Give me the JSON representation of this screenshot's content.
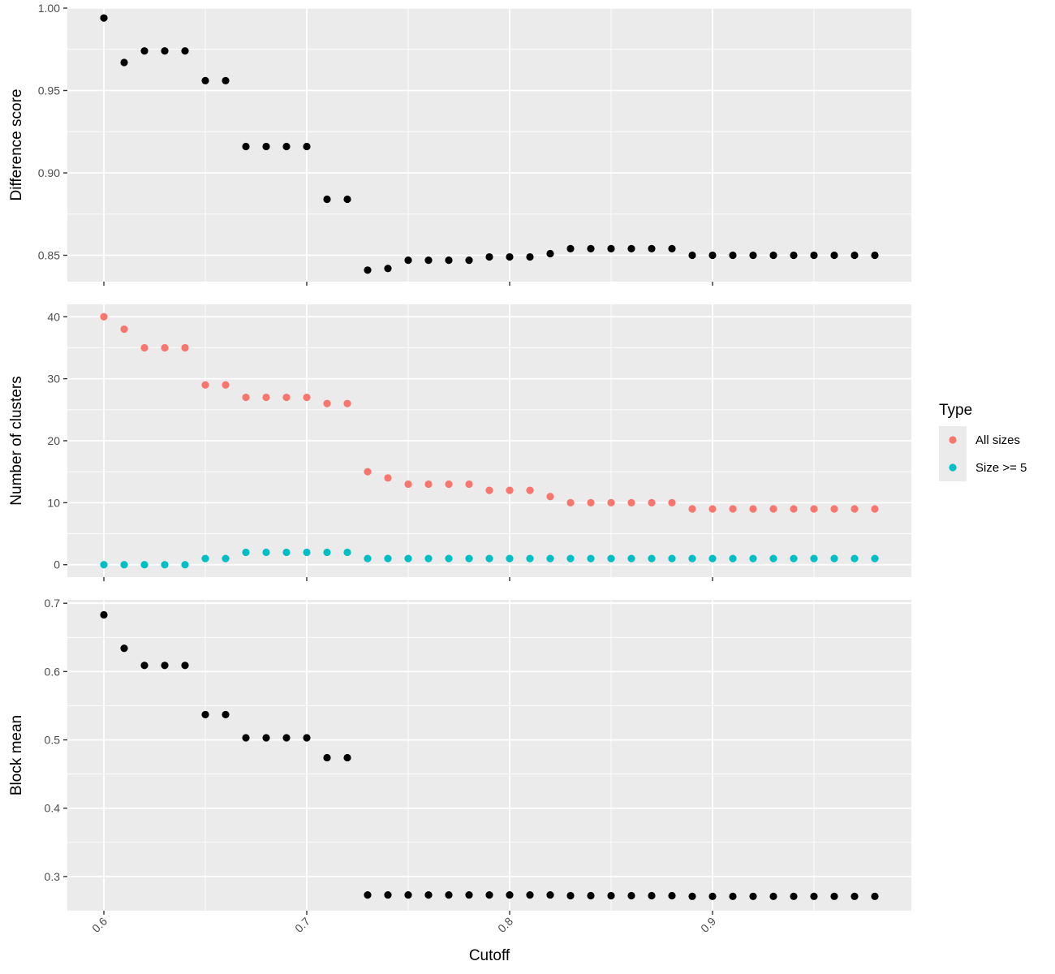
{
  "chart_data": [
    {
      "type": "scatter",
      "panel": "top",
      "ylabel": "Difference score",
      "xlim": [
        0.582,
        0.998
      ],
      "ylim": [
        0.834,
        1.0
      ],
      "yticks": [
        0.85,
        0.9,
        0.95,
        1.0
      ],
      "ytick_labels": [
        "0.85",
        "0.90",
        "0.95",
        "1.00"
      ],
      "grid": true,
      "series": [
        {
          "color": "#000000",
          "x": [
            0.6,
            0.61,
            0.62,
            0.63,
            0.64,
            0.65,
            0.66,
            0.67,
            0.68,
            0.69,
            0.7,
            0.71,
            0.72,
            0.73,
            0.74,
            0.75,
            0.76,
            0.77,
            0.78,
            0.79,
            0.8,
            0.81,
            0.82,
            0.83,
            0.84,
            0.85,
            0.86,
            0.87,
            0.88,
            0.89,
            0.9,
            0.91,
            0.92,
            0.93,
            0.94,
            0.95,
            0.96,
            0.97,
            0.98
          ],
          "y": [
            0.994,
            0.967,
            0.974,
            0.974,
            0.974,
            0.956,
            0.956,
            0.916,
            0.916,
            0.916,
            0.916,
            0.884,
            0.884,
            0.841,
            0.842,
            0.847,
            0.847,
            0.847,
            0.847,
            0.849,
            0.849,
            0.849,
            0.851,
            0.854,
            0.854,
            0.854,
            0.854,
            0.854,
            0.854,
            0.85,
            0.85,
            0.85,
            0.85,
            0.85,
            0.85,
            0.85,
            0.85,
            0.85,
            0.85
          ]
        }
      ]
    },
    {
      "type": "scatter",
      "panel": "middle",
      "ylabel": "Number of clusters",
      "xlim": [
        0.582,
        0.998
      ],
      "ylim": [
        -2,
        42
      ],
      "yticks": [
        0,
        10,
        20,
        30,
        40
      ],
      "ytick_labels": [
        "0",
        "10",
        "20",
        "30",
        "40"
      ],
      "grid": true,
      "legend": {
        "title": "Type",
        "position": "right"
      },
      "series": [
        {
          "name": "All sizes",
          "color": "#F8766D",
          "x": [
            0.6,
            0.61,
            0.62,
            0.63,
            0.64,
            0.65,
            0.66,
            0.67,
            0.68,
            0.69,
            0.7,
            0.71,
            0.72,
            0.73,
            0.74,
            0.75,
            0.76,
            0.77,
            0.78,
            0.79,
            0.8,
            0.81,
            0.82,
            0.83,
            0.84,
            0.85,
            0.86,
            0.87,
            0.88,
            0.89,
            0.9,
            0.91,
            0.92,
            0.93,
            0.94,
            0.95,
            0.96,
            0.97,
            0.98
          ],
          "y": [
            40,
            38,
            35,
            35,
            35,
            29,
            29,
            27,
            27,
            27,
            27,
            26,
            26,
            15,
            14,
            13,
            13,
            13,
            13,
            12,
            12,
            12,
            11,
            10,
            10,
            10,
            10,
            10,
            10,
            9,
            9,
            9,
            9,
            9,
            9,
            9,
            9,
            9,
            9
          ]
        },
        {
          "name": "Size >= 5",
          "color": "#00BFC4",
          "x": [
            0.6,
            0.61,
            0.62,
            0.63,
            0.64,
            0.65,
            0.66,
            0.67,
            0.68,
            0.69,
            0.7,
            0.71,
            0.72,
            0.73,
            0.74,
            0.75,
            0.76,
            0.77,
            0.78,
            0.79,
            0.8,
            0.81,
            0.82,
            0.83,
            0.84,
            0.85,
            0.86,
            0.87,
            0.88,
            0.89,
            0.9,
            0.91,
            0.92,
            0.93,
            0.94,
            0.95,
            0.96,
            0.97,
            0.98
          ],
          "y": [
            0,
            0,
            0,
            0,
            0,
            1,
            1,
            2,
            2,
            2,
            2,
            2,
            2,
            1,
            1,
            1,
            1,
            1,
            1,
            1,
            1,
            1,
            1,
            1,
            1,
            1,
            1,
            1,
            1,
            1,
            1,
            1,
            1,
            1,
            1,
            1,
            1,
            1,
            1
          ]
        }
      ]
    },
    {
      "type": "scatter",
      "panel": "bottom",
      "ylabel": "Block mean",
      "xlabel": "Cutoff",
      "xlim": [
        0.582,
        0.998
      ],
      "xticks": [
        0.6,
        0.7,
        0.8,
        0.9
      ],
      "xtick_labels": [
        "0.6",
        "0.7",
        "0.8",
        "0.9"
      ],
      "ylim": [
        0.25,
        0.705
      ],
      "yticks": [
        0.3,
        0.4,
        0.5,
        0.6,
        0.7
      ],
      "ytick_labels": [
        "0.3",
        "0.4",
        "0.5",
        "0.6",
        "0.7"
      ],
      "grid": true,
      "series": [
        {
          "color": "#000000",
          "x": [
            0.6,
            0.61,
            0.62,
            0.63,
            0.64,
            0.65,
            0.66,
            0.67,
            0.68,
            0.69,
            0.7,
            0.71,
            0.72,
            0.73,
            0.74,
            0.75,
            0.76,
            0.77,
            0.78,
            0.79,
            0.8,
            0.81,
            0.82,
            0.83,
            0.84,
            0.85,
            0.86,
            0.87,
            0.88,
            0.89,
            0.9,
            0.91,
            0.92,
            0.93,
            0.94,
            0.95,
            0.96,
            0.97,
            0.98
          ],
          "y": [
            0.683,
            0.634,
            0.609,
            0.609,
            0.609,
            0.537,
            0.537,
            0.503,
            0.503,
            0.503,
            0.503,
            0.474,
            0.474,
            0.273,
            0.273,
            0.273,
            0.273,
            0.273,
            0.273,
            0.273,
            0.273,
            0.273,
            0.273,
            0.272,
            0.272,
            0.272,
            0.272,
            0.272,
            0.272,
            0.271,
            0.271,
            0.271,
            0.271,
            0.271,
            0.271,
            0.271,
            0.271,
            0.271,
            0.271
          ]
        }
      ]
    }
  ]
}
